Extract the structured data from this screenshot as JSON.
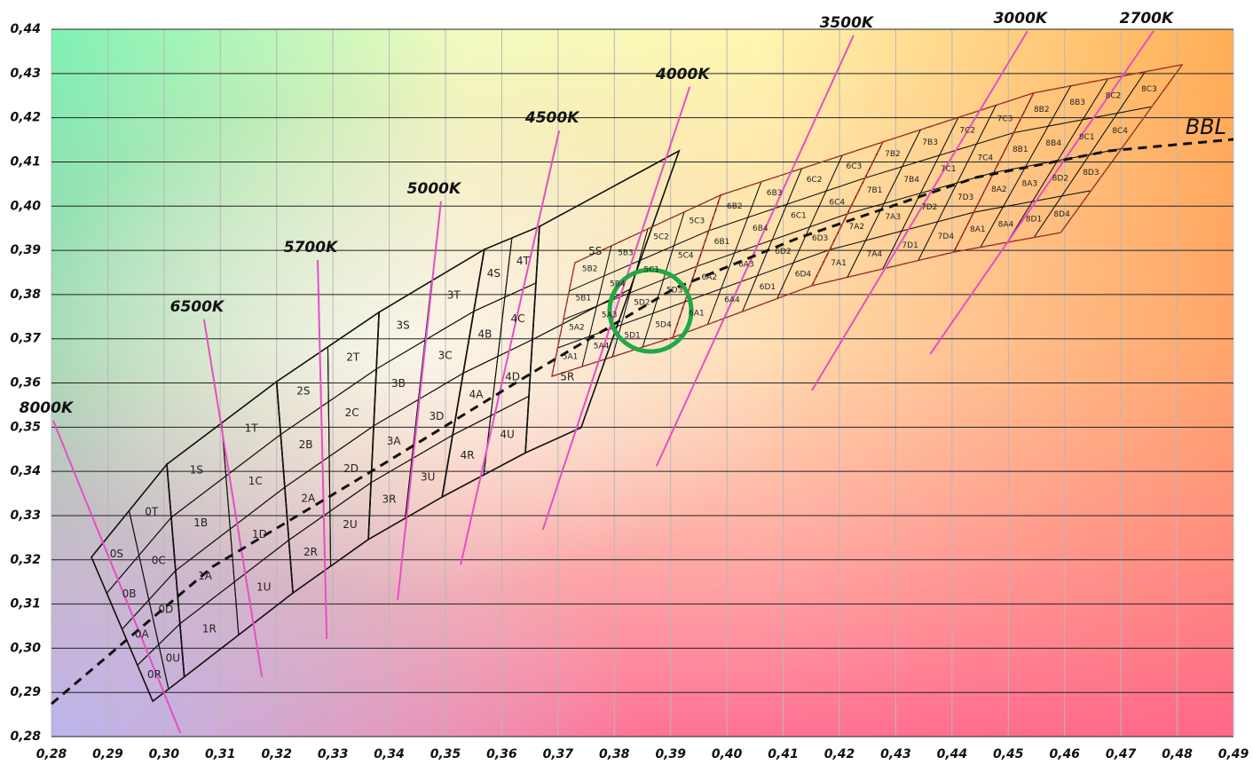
{
  "chart_data": {
    "type": "chromaticity",
    "xlim": [
      0.28,
      0.49
    ],
    "ylim": [
      0.28,
      0.44
    ],
    "grid": true,
    "xticks": [
      {
        "value": 0.28,
        "label": "0,28"
      },
      {
        "value": 0.29,
        "label": "0,29"
      },
      {
        "value": 0.3,
        "label": "0,30"
      },
      {
        "value": 0.31,
        "label": "0,31"
      },
      {
        "value": 0.32,
        "label": "0,32"
      },
      {
        "value": 0.33,
        "label": "0,33"
      },
      {
        "value": 0.34,
        "label": "0,34"
      },
      {
        "value": 0.35,
        "label": "0,35"
      },
      {
        "value": 0.36,
        "label": "0,36"
      },
      {
        "value": 0.37,
        "label": "0,37"
      },
      {
        "value": 0.38,
        "label": "0,38"
      },
      {
        "value": 0.39,
        "label": "0,39"
      },
      {
        "value": 0.4,
        "label": "0,40"
      },
      {
        "value": 0.41,
        "label": "0,41"
      },
      {
        "value": 0.42,
        "label": "0,42"
      },
      {
        "value": 0.43,
        "label": "0,43"
      },
      {
        "value": 0.44,
        "label": "0,44"
      },
      {
        "value": 0.45,
        "label": "0,45"
      },
      {
        "value": 0.46,
        "label": "0,46"
      },
      {
        "value": 0.47,
        "label": "0,47"
      },
      {
        "value": 0.48,
        "label": "0,48"
      },
      {
        "value": 0.49,
        "label": "0,49"
      }
    ],
    "yticks": [
      {
        "value": 0.28,
        "label": "0,28"
      },
      {
        "value": 0.29,
        "label": "0,29"
      },
      {
        "value": 0.3,
        "label": "0,30"
      },
      {
        "value": 0.31,
        "label": "0,31"
      },
      {
        "value": 0.32,
        "label": "0,32"
      },
      {
        "value": 0.33,
        "label": "0,33"
      },
      {
        "value": 0.34,
        "label": "0,34"
      },
      {
        "value": 0.35,
        "label": "0,35"
      },
      {
        "value": 0.36,
        "label": "0,36"
      },
      {
        "value": 0.37,
        "label": "0,37"
      },
      {
        "value": 0.38,
        "label": "0,38"
      },
      {
        "value": 0.39,
        "label": "0,39"
      },
      {
        "value": 0.4,
        "label": "0,40"
      },
      {
        "value": 0.41,
        "label": "0,41"
      },
      {
        "value": 0.42,
        "label": "0,42"
      },
      {
        "value": 0.43,
        "label": "0,43"
      },
      {
        "value": 0.44,
        "label": "0,44"
      }
    ],
    "cct_lines": [
      {
        "name": "8000K",
        "x": [
          0.2803,
          0.3029
        ],
        "y": [
          0.3515,
          0.2808
        ]
      },
      {
        "name": "6500K",
        "x": [
          0.3071,
          0.3174
        ],
        "y": [
          0.3744,
          0.2935
        ]
      },
      {
        "name": "5700K",
        "x": [
          0.3273,
          0.3289
        ],
        "y": [
          0.3878,
          0.3021
        ]
      },
      {
        "name": "5000K",
        "x": [
          0.3492,
          0.3415
        ],
        "y": [
          0.4011,
          0.3109
        ]
      },
      {
        "name": "4500K",
        "x": [
          0.3702,
          0.3527
        ],
        "y": [
          0.4171,
          0.3189
        ]
      },
      {
        "name": "4000K",
        "x": [
          0.3934,
          0.3673
        ],
        "y": [
          0.427,
          0.3268
        ]
      },
      {
        "name": "3500K",
        "x": [
          0.4225,
          0.3875
        ],
        "y": [
          0.4386,
          0.3412
        ]
      },
      {
        "name": "3000K",
        "x": [
          0.4534,
          0.4151
        ],
        "y": [
          0.4396,
          0.3583
        ]
      },
      {
        "name": "2700K",
        "x": [
          0.4758,
          0.4361
        ],
        "y": [
          0.4396,
          0.3665
        ]
      }
    ],
    "bbl": {
      "name": "BBL",
      "x": [
        0.28,
        0.3087,
        0.3371,
        0.3654,
        0.3907,
        0.4127,
        0.4443,
        0.4679,
        0.49
      ],
      "y": [
        0.2874,
        0.3185,
        0.3402,
        0.3623,
        0.3814,
        0.3928,
        0.4065,
        0.4125,
        0.4151
      ]
    },
    "bins": [
      {
        "corners_x": [
          0.2871,
          0.3005,
          0.3036,
          0.298
        ],
        "corners_y": [
          0.3206,
          0.3416,
          0.2935,
          0.288
        ],
        "labels": [
          [
            "0S",
            "0T"
          ],
          [
            "0B",
            "0C"
          ],
          [
            "0A",
            "0D"
          ],
          [
            "0R",
            "0U"
          ]
        ]
      },
      {
        "corners_x": [
          0.3005,
          0.32,
          0.3229,
          0.3036
        ],
        "corners_y": [
          0.3416,
          0.3603,
          0.3125,
          0.2935
        ],
        "labels": [
          [
            "1S",
            "1T"
          ],
          [
            "1B",
            "1C"
          ],
          [
            "1A",
            "1D"
          ],
          [
            "1R",
            "1U"
          ]
        ]
      },
      {
        "corners_x": [
          0.32,
          0.3382,
          0.3363,
          0.3229
        ],
        "corners_y": [
          0.3603,
          0.376,
          0.3246,
          0.3125
        ],
        "labels": [
          [
            "2S",
            "2T"
          ],
          [
            "2B",
            "2C"
          ],
          [
            "2A",
            "2D"
          ],
          [
            "2R",
            "2U"
          ]
        ]
      },
      {
        "corners_x": [
          0.3382,
          0.3569,
          0.3494,
          0.3363
        ],
        "corners_y": [
          0.376,
          0.3902,
          0.3342,
          0.3246
        ],
        "labels": [
          [
            "3S",
            "3T"
          ],
          [
            "3B",
            "3C"
          ],
          [
            "3A",
            "3D"
          ],
          [
            "3R",
            "3U"
          ]
        ]
      },
      {
        "corners_x": [
          0.3569,
          0.3667,
          0.3642,
          0.3494
        ],
        "corners_y": [
          0.3902,
          0.3954,
          0.3442,
          0.3342
        ],
        "labels": [
          [
            "4S",
            "4T"
          ],
          [
            "4B",
            "4C"
          ],
          [
            "4A",
            "4D"
          ],
          [
            "4R",
            "4U"
          ]
        ]
      },
      {
        "corners_x": [
          0.3667,
          0.3915,
          0.3741,
          0.3642
        ],
        "corners_y": [
          0.3954,
          0.4125,
          0.3499,
          0.3442
        ],
        "labels": [
          [
            "5S"
          ],
          [
            "5R"
          ]
        ]
      },
      {
        "corners_x": [
          0.373,
          0.3989,
          0.3904,
          0.3689
        ],
        "corners_y": [
          0.3872,
          0.4025,
          0.3703,
          0.3615
        ],
        "labels": [
          [
            "5B2",
            "5B3",
            "5C2",
            "5C3"
          ],
          [
            "5B1",
            "5B4",
            "5C1",
            "5C4"
          ],
          [
            "5A2",
            "5A3",
            "5D2",
            "5D3"
          ],
          [
            "5A1",
            "5A4",
            "5D1",
            "5D4"
          ]
        ]
      },
      {
        "corners_x": [
          0.3989,
          0.4277,
          0.4151,
          0.3904
        ],
        "corners_y": [
          0.4025,
          0.4145,
          0.382,
          0.3703
        ],
        "labels": [
          [
            "6B2",
            "6B3",
            "6C2",
            "6C3"
          ],
          [
            "6B1",
            "6B4",
            "6C1",
            "6C4"
          ],
          [
            "6A2",
            "6A3",
            "6D2",
            "6D3"
          ],
          [
            "6A1",
            "6A4",
            "6D1",
            "6D4"
          ]
        ]
      },
      {
        "corners_x": [
          0.4277,
          0.4545,
          0.4403,
          0.4151
        ],
        "corners_y": [
          0.4145,
          0.4256,
          0.3896,
          0.382
        ],
        "labels": [
          [
            "7B2",
            "7B3",
            "7C2",
            "7C3"
          ],
          [
            "7B1",
            "7B4",
            "7C1",
            "7C4"
          ],
          [
            "7A2",
            "7A3",
            "7D2",
            "7D3"
          ],
          [
            "7A1",
            "7A4",
            "7D1",
            "7D4"
          ]
        ]
      },
      {
        "corners_x": [
          0.4545,
          0.4809,
          0.4593,
          0.4403
        ],
        "corners_y": [
          0.4256,
          0.432,
          0.394,
          0.3896
        ],
        "labels": [
          [
            "8B2",
            "8B3",
            "8C2",
            "8C3"
          ],
          [
            "8B1",
            "8B4",
            "8C1",
            "8C4"
          ],
          [
            "8A2",
            "8A3",
            "8D2",
            "8D3"
          ],
          [
            "8A1",
            "8A4",
            "8D1",
            "8D4"
          ]
        ]
      }
    ]
  }
}
